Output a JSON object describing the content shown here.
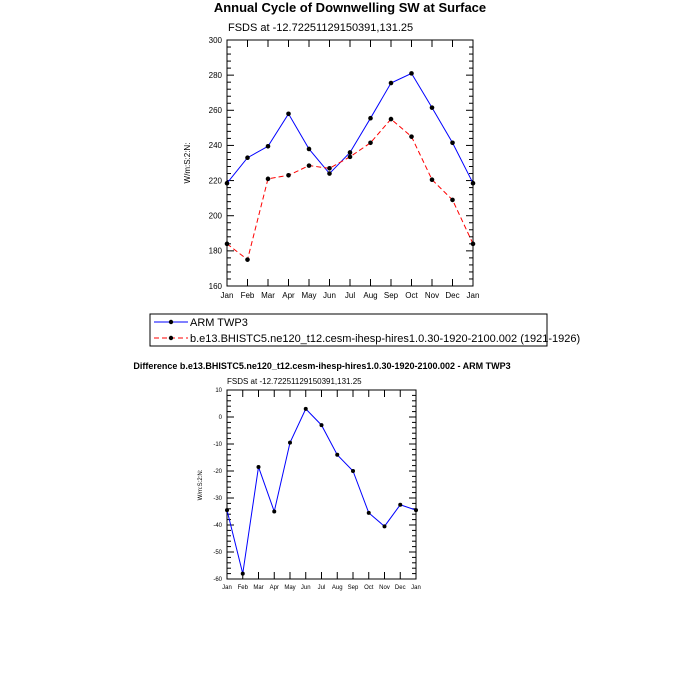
{
  "chart_data": [
    {
      "type": "line",
      "title": "Annual Cycle of Downwelling SW at Surface",
      "subtitle": "FSDS at -12.72251129150391,131.25",
      "ylabel": "W/m:S:2:N:",
      "xlabel": "",
      "ylim": [
        160,
        300
      ],
      "yticks": [
        160,
        180,
        200,
        220,
        240,
        260,
        280,
        300
      ],
      "categories": [
        "Jan",
        "Feb",
        "Mar",
        "Apr",
        "May",
        "Jun",
        "Jul",
        "Aug",
        "Sep",
        "Oct",
        "Nov",
        "Dec",
        "Jan"
      ],
      "series": [
        {
          "name": "ARM TWP3",
          "color": "#0000ff",
          "dash": "solid",
          "values": [
            218.5,
            233,
            239.5,
            258,
            238,
            224,
            236,
            255.5,
            275.5,
            281,
            261.5,
            241.5,
            218.5
          ]
        },
        {
          "name": "b.e13.BHISTC5.ne120_t12.cesm-ihesp-hires1.0.30-1920-2100.002 (1921-1926)",
          "color": "#ff0000",
          "dash": "dashed",
          "values": [
            184,
            175,
            221,
            223,
            228.5,
            227,
            233.5,
            241.5,
            255,
            245,
            220.5,
            209,
            184
          ]
        }
      ],
      "legend": "bottom"
    },
    {
      "type": "line",
      "title": "Difference b.e13.BHISTC5.ne120_t12.cesm-ihesp-hires1.0.30-1920-2100.002 - ARM TWP3",
      "subtitle": "FSDS at -12.72251129150391,131.25",
      "ylabel": "W/m:S:2:N:",
      "xlabel": "",
      "ylim": [
        -60,
        10
      ],
      "yticks": [
        -60,
        -50,
        -40,
        -30,
        -20,
        -10,
        0,
        10
      ],
      "categories": [
        "Jan",
        "Feb",
        "Mar",
        "Apr",
        "May",
        "Jun",
        "Jul",
        "Aug",
        "Sep",
        "Oct",
        "Nov",
        "Dec",
        "Jan"
      ],
      "series": [
        {
          "name": "Difference",
          "color": "#0000ff",
          "dash": "solid",
          "values": [
            -34.5,
            -58,
            -18.5,
            -35,
            -9.5,
            3,
            -3,
            -14,
            -20,
            -35.5,
            -40.5,
            -32.5,
            -34.5
          ]
        }
      ]
    }
  ]
}
